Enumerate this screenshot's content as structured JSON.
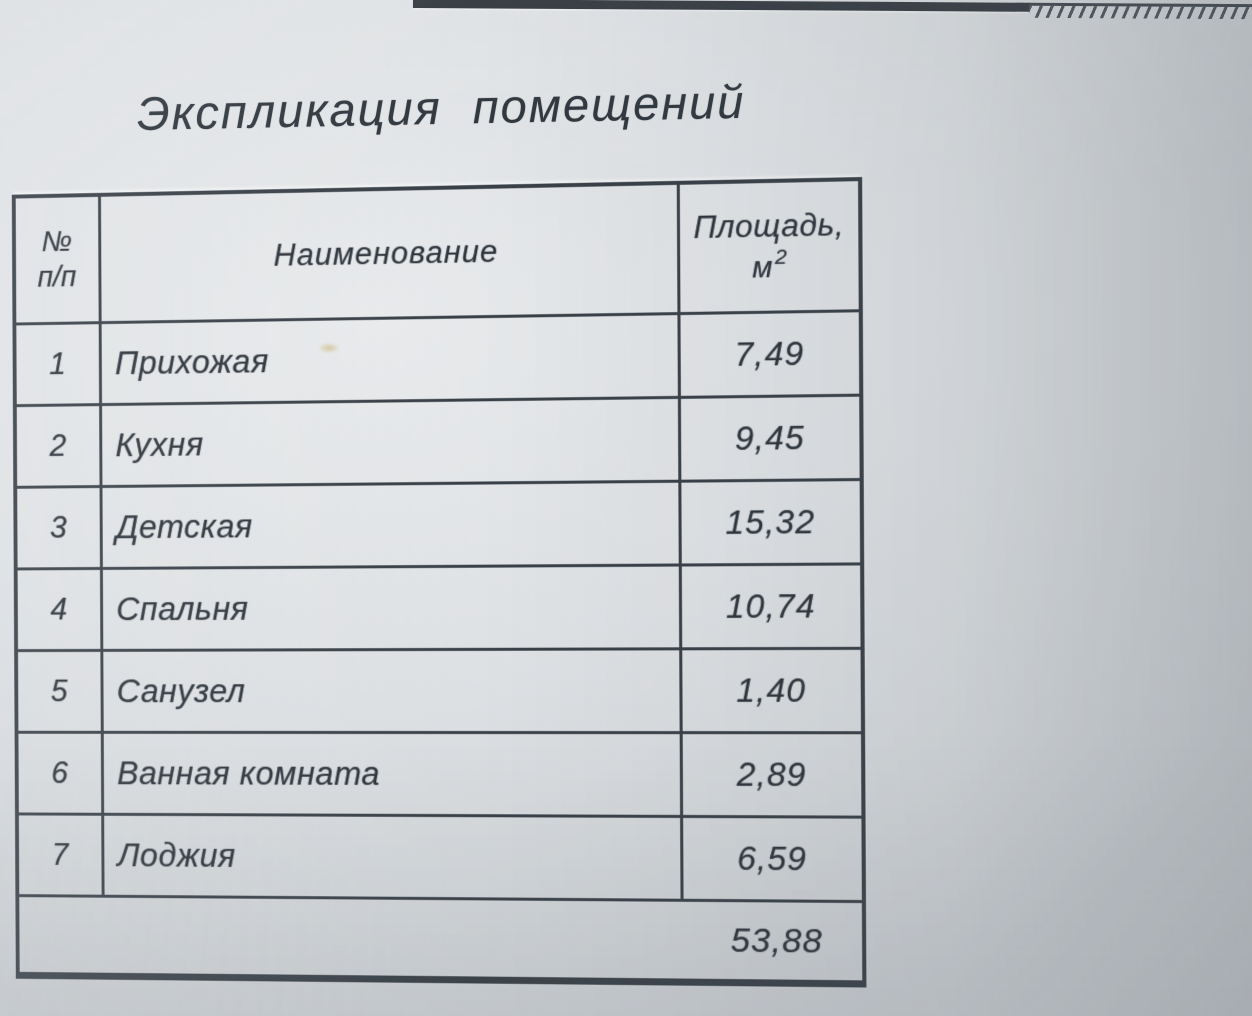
{
  "doc": {
    "title": "Экспликация помещений",
    "table": {
      "header": {
        "num_top": "№",
        "num_bottom": "п/п",
        "name": "Наименование",
        "area_top": "Площадь,",
        "area_unit": "м",
        "area_exp": "2"
      },
      "rows": [
        {
          "num": "1",
          "name": "Прихожая",
          "area": "7,49"
        },
        {
          "num": "2",
          "name": "Кухня",
          "area": "9,45"
        },
        {
          "num": "3",
          "name": "Детская",
          "area": "15,32"
        },
        {
          "num": "4",
          "name": "Спальня",
          "area": "10,74"
        },
        {
          "num": "5",
          "name": "Санузел",
          "area": "1,40"
        },
        {
          "num": "6",
          "name": "Ванная комната",
          "area": "2,89"
        },
        {
          "num": "7",
          "name": "Лоджия",
          "area": "6,59"
        }
      ],
      "total": "53,88"
    },
    "colors": {
      "paper": "#dadde0",
      "ink": "#2d343c",
      "line": "#394048",
      "stain": "#b89a34"
    }
  }
}
